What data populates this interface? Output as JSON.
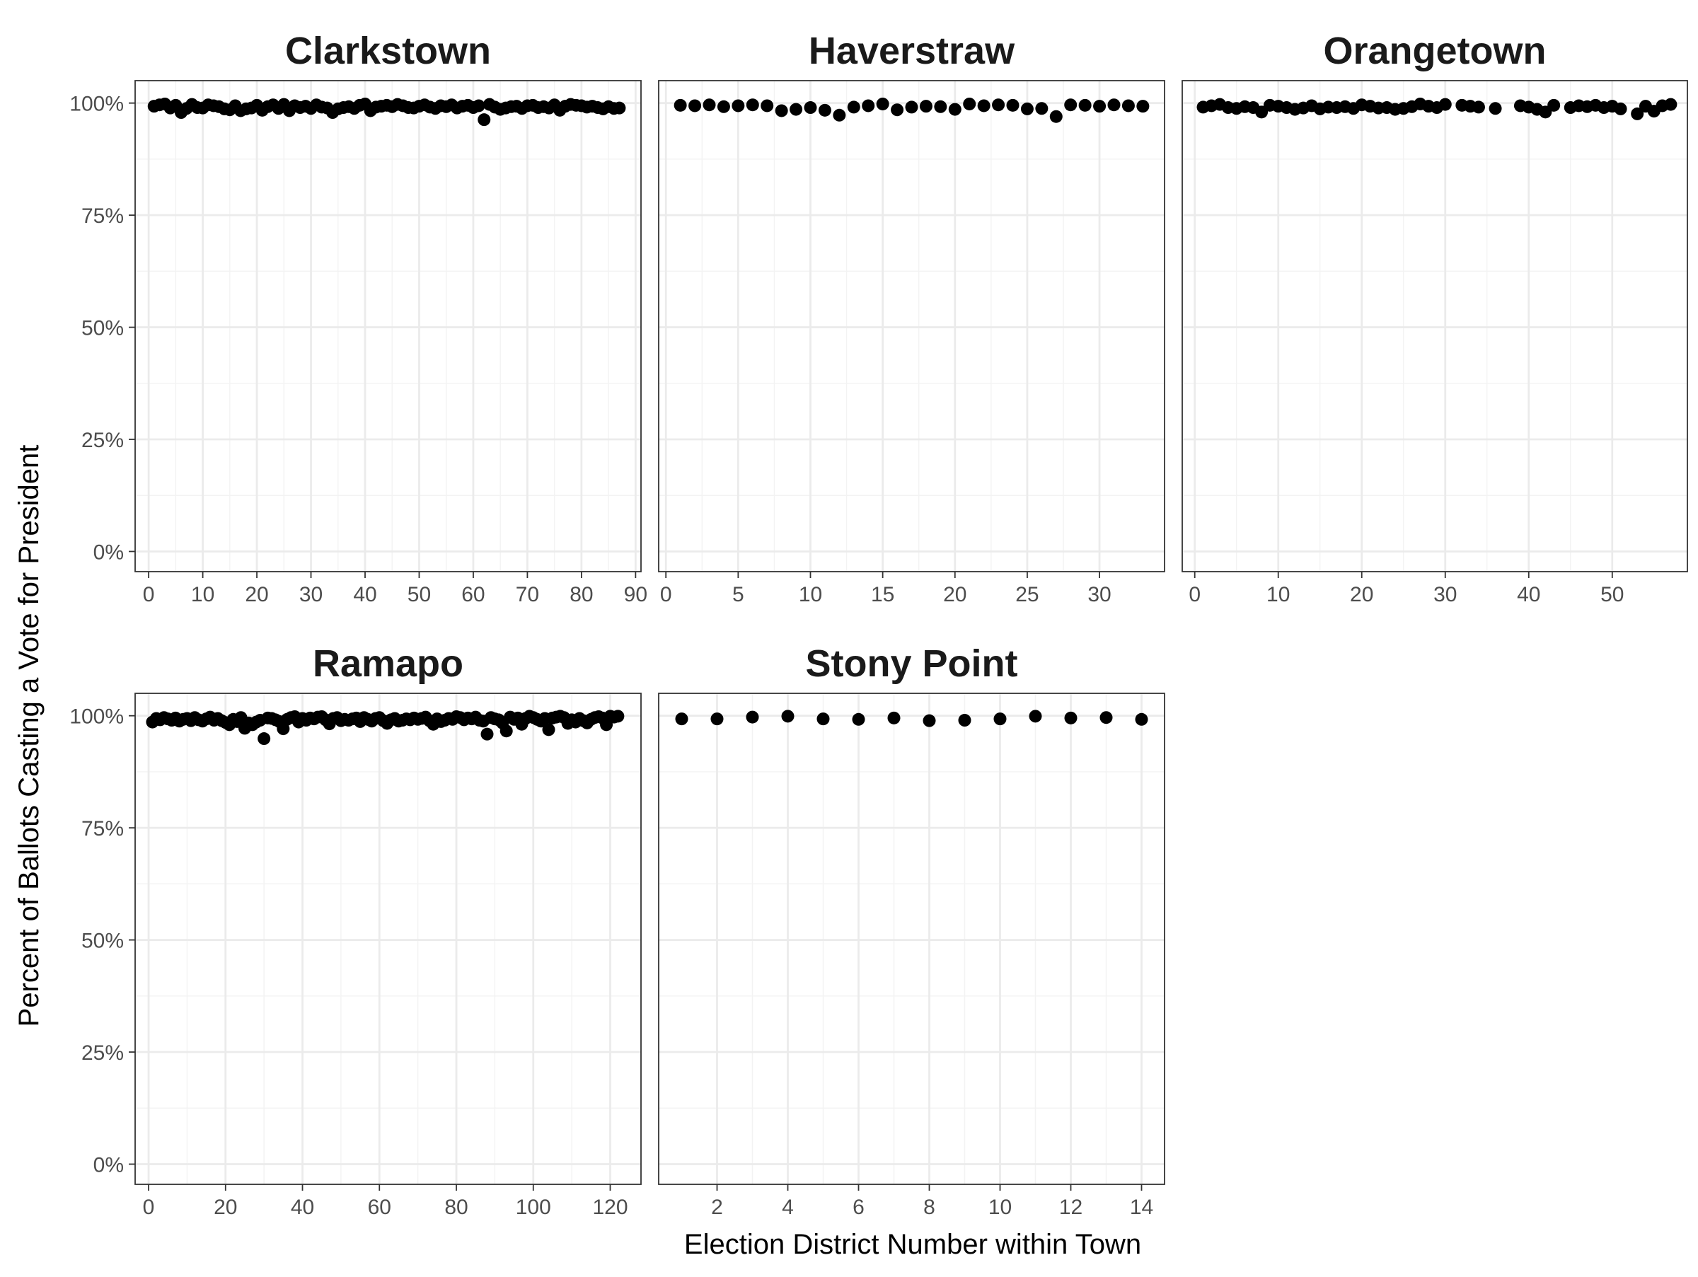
{
  "chart_data": {
    "type": "scatter",
    "xlabel": "Election District Number within Town",
    "ylabel": "Percent of Ballots Casting a Vote for President",
    "y_ticks": [
      "0%",
      "25%",
      "50%",
      "75%",
      "100%"
    ],
    "y_tick_values": [
      0,
      25,
      50,
      75,
      100
    ],
    "ylim": [
      -4.5,
      105
    ],
    "grid": true,
    "legend": "none",
    "panels": [
      {
        "title": "Clarkstown",
        "xlim": [
          -2.5,
          91
        ],
        "x_ticks": [
          "0",
          "10",
          "20",
          "30",
          "40",
          "50",
          "60",
          "70",
          "80",
          "90"
        ],
        "x_tick_values": [
          0,
          10,
          20,
          30,
          40,
          50,
          60,
          70,
          80,
          90
        ],
        "x": [
          1,
          2,
          3,
          4,
          5,
          6,
          7,
          8,
          9,
          10,
          11,
          12,
          13,
          14,
          15,
          16,
          17,
          18,
          19,
          20,
          21,
          22,
          23,
          24,
          25,
          26,
          27,
          28,
          29,
          30,
          31,
          32,
          33,
          34,
          35,
          36,
          37,
          38,
          39,
          40,
          41,
          42,
          43,
          44,
          45,
          46,
          47,
          48,
          49,
          50,
          51,
          52,
          53,
          54,
          55,
          56,
          57,
          58,
          59,
          60,
          61,
          62,
          63,
          64,
          65,
          66,
          67,
          68,
          69,
          70,
          71,
          72,
          73,
          74,
          75,
          76,
          77,
          78,
          79,
          80,
          81,
          82,
          83,
          84,
          85,
          86,
          87
        ],
        "y": [
          99.3,
          99.6,
          99.8,
          98.9,
          99.5,
          97.9,
          98.8,
          99.7,
          99.0,
          98.9,
          99.6,
          99.4,
          99.2,
          98.7,
          98.5,
          99.4,
          98.3,
          98.7,
          98.9,
          99.5,
          98.4,
          99.2,
          99.6,
          98.8,
          99.7,
          98.3,
          99.4,
          99.0,
          99.3,
          98.8,
          99.6,
          99.1,
          98.9,
          97.9,
          98.7,
          99.0,
          99.2,
          98.8,
          99.5,
          99.8,
          98.3,
          99.1,
          99.3,
          99.5,
          99.2,
          99.7,
          99.4,
          99.0,
          98.9,
          99.3,
          99.6,
          99.1,
          98.8,
          99.4,
          99.2,
          99.6,
          98.9,
          99.3,
          99.5,
          99.0,
          99.4,
          96.3,
          99.7,
          99.1,
          98.6,
          98.9,
          99.2,
          99.3,
          98.8,
          99.4,
          99.5,
          99.0,
          99.2,
          98.9,
          99.6,
          98.4,
          99.3,
          99.7,
          99.5,
          99.4,
          99.1,
          99.3,
          99.0,
          98.7,
          99.2,
          98.8,
          98.9
        ]
      },
      {
        "title": "Haverstraw",
        "xlim": [
          -0.5,
          34.5
        ],
        "x_ticks": [
          "0",
          "5",
          "10",
          "15",
          "20",
          "25",
          "30"
        ],
        "x_tick_values": [
          0,
          5,
          10,
          15,
          20,
          25,
          30
        ],
        "x": [
          1,
          2,
          3,
          4,
          5,
          6,
          7,
          8,
          9,
          10,
          11,
          12,
          13,
          14,
          15,
          16,
          17,
          18,
          19,
          20,
          21,
          22,
          23,
          24,
          25,
          26,
          27,
          28,
          29,
          30,
          31,
          32,
          33
        ],
        "y": [
          99.5,
          99.4,
          99.6,
          99.2,
          99.4,
          99.6,
          99.4,
          98.3,
          98.6,
          99.0,
          98.4,
          97.3,
          99.1,
          99.4,
          99.8,
          98.5,
          99.1,
          99.3,
          99.2,
          98.6,
          99.8,
          99.4,
          99.6,
          99.5,
          98.7,
          98.8,
          97.0,
          99.6,
          99.5,
          99.3,
          99.6,
          99.4,
          99.3
        ]
      },
      {
        "title": "Orangetown",
        "xlim": [
          -1.5,
          59
        ],
        "x_ticks": [
          "0",
          "10",
          "20",
          "30",
          "40",
          "50"
        ],
        "x_tick_values": [
          0,
          10,
          20,
          30,
          40,
          50
        ],
        "x": [
          1,
          2,
          3,
          4,
          5,
          6,
          7,
          8,
          9,
          10,
          11,
          12,
          13,
          14,
          15,
          16,
          17,
          18,
          19,
          20,
          21,
          22,
          23,
          24,
          25,
          26,
          27,
          28,
          29,
          30,
          32,
          33,
          34,
          36,
          39,
          40,
          41,
          42,
          43,
          45,
          46,
          47,
          48,
          49,
          50,
          51,
          53,
          54,
          55,
          56,
          57
        ],
        "y": [
          99.1,
          99.4,
          99.7,
          99.0,
          98.8,
          99.2,
          99.0,
          98.0,
          99.5,
          99.3,
          99.0,
          98.6,
          98.9,
          99.4,
          98.7,
          99.1,
          99.0,
          99.2,
          98.8,
          99.6,
          99.3,
          98.9,
          99.0,
          98.6,
          98.8,
          99.2,
          99.8,
          99.3,
          99.0,
          99.7,
          99.5,
          99.3,
          99.1,
          98.8,
          99.4,
          99.1,
          98.6,
          98.0,
          99.5,
          99.0,
          99.4,
          99.2,
          99.5,
          99.0,
          99.3,
          98.7,
          97.6,
          99.3,
          98.2,
          99.4,
          99.7
        ]
      },
      {
        "title": "Ramapo",
        "xlim": [
          -3.5,
          128
        ],
        "x_ticks": [
          "0",
          "20",
          "40",
          "60",
          "80",
          "100",
          "120"
        ],
        "x_tick_values": [
          0,
          20,
          40,
          60,
          80,
          100,
          120
        ],
        "x": [
          1,
          2,
          3,
          4,
          5,
          6,
          7,
          8,
          9,
          10,
          11,
          12,
          13,
          14,
          15,
          16,
          17,
          18,
          19,
          20,
          21,
          22,
          23,
          24,
          25,
          26,
          27,
          28,
          29,
          30,
          31,
          32,
          33,
          34,
          35,
          36,
          37,
          38,
          39,
          40,
          41,
          42,
          43,
          44,
          45,
          46,
          47,
          48,
          49,
          50,
          51,
          52,
          53,
          54,
          55,
          56,
          57,
          58,
          59,
          60,
          61,
          62,
          63,
          64,
          65,
          66,
          67,
          68,
          69,
          70,
          71,
          72,
          73,
          74,
          75,
          76,
          77,
          78,
          79,
          80,
          81,
          82,
          83,
          84,
          85,
          86,
          87,
          88,
          89,
          90,
          91,
          92,
          93,
          94,
          95,
          96,
          97,
          98,
          99,
          100,
          101,
          102,
          103,
          104,
          105,
          106,
          107,
          108,
          109,
          110,
          111,
          112,
          113,
          114,
          115,
          116,
          117,
          118,
          119,
          120,
          121,
          122
        ],
        "y": [
          98.6,
          99.4,
          99.1,
          99.6,
          99.3,
          99.0,
          99.5,
          98.8,
          99.2,
          99.4,
          98.9,
          99.6,
          99.1,
          98.8,
          99.3,
          99.7,
          99.0,
          99.4,
          98.9,
          98.5,
          98.0,
          99.2,
          98.7,
          99.6,
          97.2,
          98.4,
          98.0,
          98.6,
          99.0,
          94.9,
          99.5,
          99.4,
          99.1,
          98.7,
          97.1,
          99.2,
          99.6,
          99.8,
          98.6,
          99.4,
          99.0,
          99.5,
          99.3,
          99.7,
          99.8,
          99.1,
          98.2,
          99.4,
          99.6,
          98.9,
          99.2,
          99.0,
          99.3,
          99.5,
          98.7,
          99.6,
          99.2,
          98.8,
          99.4,
          99.6,
          98.9,
          98.3,
          99.1,
          99.4,
          98.8,
          99.0,
          99.3,
          99.1,
          99.5,
          99.2,
          99.4,
          99.7,
          98.9,
          98.1,
          99.3,
          98.7,
          99.0,
          99.4,
          99.2,
          99.8,
          99.6,
          99.1,
          99.5,
          99.3,
          99.7,
          99.0,
          98.8,
          95.9,
          99.6,
          99.3,
          99.1,
          98.4,
          96.6,
          99.7,
          99.2,
          99.5,
          98.1,
          99.4,
          99.9,
          99.6,
          99.2,
          98.8,
          99.4,
          96.9,
          99.5,
          99.7,
          99.9,
          99.6,
          98.3,
          99.1,
          98.6,
          99.4,
          98.9,
          98.4,
          99.2,
          99.6,
          99.8,
          99.5,
          98.0,
          99.9,
          99.7,
          99.9
        ]
      },
      {
        "title": "Stony Point",
        "xlim": [
          0.35,
          14.65
        ],
        "x_ticks": [
          "2",
          "4",
          "6",
          "8",
          "10",
          "12",
          "14"
        ],
        "x_tick_values": [
          2,
          4,
          6,
          8,
          10,
          12,
          14
        ],
        "x": [
          1,
          2,
          3,
          4,
          5,
          6,
          7,
          8,
          9,
          10,
          11,
          12,
          13,
          14
        ],
        "y": [
          99.3,
          99.3,
          99.7,
          99.9,
          99.3,
          99.2,
          99.5,
          98.9,
          99.0,
          99.3,
          99.9,
          99.5,
          99.6,
          99.2
        ]
      }
    ]
  }
}
